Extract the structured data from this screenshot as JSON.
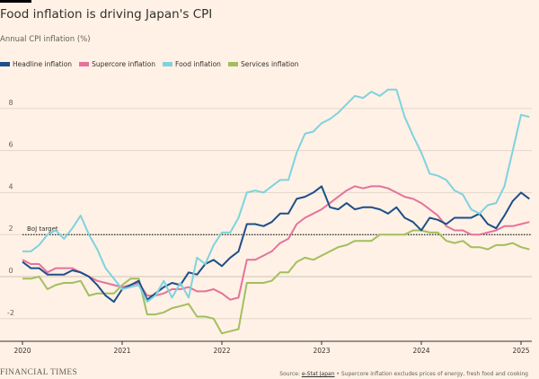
{
  "header": {
    "title": "Food inflation is driving Japan's CPI",
    "subtitle": "Annual CPI inflation (%)"
  },
  "footer": {
    "brand": "FINANCIAL TIMES",
    "source_prefix": "Source: ",
    "source_link": "e-Stat Japan",
    "source_note": " • Supercore inflation excludes prices of energy, fresh food and cooking"
  },
  "chart_data": {
    "type": "line",
    "title": "Food inflation is driving Japan's CPI",
    "ylabel": "Annual CPI inflation (%)",
    "xlabel": "",
    "x_start": "2020-01",
    "x_frequency": "monthly",
    "xticks": [
      "2020",
      "2021",
      "2022",
      "2023",
      "2024",
      "2025"
    ],
    "yticks": [
      -2,
      0,
      2,
      4,
      6,
      8
    ],
    "ylim": [
      -3,
      9.5
    ],
    "grid": true,
    "legend": "top-left",
    "reference_line": {
      "label": "BoJ target",
      "value": 2
    },
    "series": [
      {
        "name": "Headline inflation",
        "color": "#1d4f8a",
        "values": [
          0.7,
          0.4,
          0.4,
          0.1,
          0.1,
          0.1,
          0.3,
          0.2,
          0.0,
          -0.4,
          -0.9,
          -1.2,
          -0.6,
          -0.4,
          -0.2,
          -1.1,
          -0.8,
          -0.5,
          -0.3,
          -0.4,
          0.2,
          0.1,
          0.6,
          0.8,
          0.5,
          0.9,
          1.2,
          2.5,
          2.5,
          2.4,
          2.6,
          3.0,
          3.0,
          3.7,
          3.8,
          4.0,
          4.3,
          3.3,
          3.2,
          3.5,
          3.2,
          3.3,
          3.3,
          3.2,
          3.0,
          3.3,
          2.8,
          2.6,
          2.2,
          2.8,
          2.7,
          2.5,
          2.8,
          2.8,
          2.8,
          3.0,
          2.5,
          2.3,
          2.9,
          3.6,
          4.0,
          3.7
        ]
      },
      {
        "name": "Supercore inflation",
        "color": "#e4739c",
        "values": [
          0.8,
          0.6,
          0.6,
          0.2,
          0.4,
          0.4,
          0.4,
          0.2,
          0.0,
          -0.2,
          -0.3,
          -0.4,
          -0.5,
          -0.4,
          -0.3,
          -0.9,
          -0.9,
          -0.8,
          -0.6,
          -0.6,
          -0.5,
          -0.7,
          -0.7,
          -0.6,
          -0.8,
          -1.1,
          -1.0,
          0.8,
          0.8,
          1.0,
          1.2,
          1.6,
          1.8,
          2.5,
          2.8,
          3.0,
          3.2,
          3.5,
          3.8,
          4.1,
          4.3,
          4.2,
          4.3,
          4.3,
          4.2,
          4.0,
          3.8,
          3.7,
          3.5,
          3.2,
          2.9,
          2.4,
          2.2,
          2.2,
          2.0,
          2.0,
          2.1,
          2.2,
          2.4,
          2.4,
          2.5,
          2.6
        ]
      },
      {
        "name": "Food inflation",
        "color": "#7ed3df",
        "values": [
          1.2,
          1.2,
          1.5,
          2.0,
          2.2,
          1.8,
          2.3,
          2.9,
          2.0,
          1.3,
          0.4,
          -0.1,
          -0.6,
          -0.5,
          -0.4,
          -1.2,
          -0.9,
          -0.2,
          -1.0,
          -0.3,
          -1.0,
          0.9,
          0.6,
          1.5,
          2.1,
          2.1,
          2.8,
          4.0,
          4.1,
          4.0,
          4.3,
          4.6,
          4.6,
          5.9,
          6.8,
          6.9,
          7.3,
          7.5,
          7.8,
          8.2,
          8.6,
          8.5,
          8.8,
          8.6,
          8.9,
          8.9,
          7.6,
          6.7,
          5.9,
          4.9,
          4.8,
          4.6,
          4.1,
          3.9,
          3.2,
          3.0,
          3.4,
          3.5,
          4.3,
          6.0,
          7.7,
          7.6
        ]
      },
      {
        "name": "Services inflation",
        "color": "#a2bf5e",
        "values": [
          -0.1,
          -0.1,
          0.0,
          -0.6,
          -0.4,
          -0.3,
          -0.3,
          -0.2,
          -0.9,
          -0.8,
          -0.8,
          -0.8,
          -0.4,
          -0.1,
          -0.1,
          -1.8,
          -1.8,
          -1.7,
          -1.5,
          -1.4,
          -1.3,
          -1.9,
          -1.9,
          -2.0,
          -2.7,
          -2.6,
          -2.5,
          -0.3,
          -0.3,
          -0.3,
          -0.2,
          0.2,
          0.2,
          0.7,
          0.9,
          0.8,
          1.0,
          1.2,
          1.4,
          1.5,
          1.7,
          1.7,
          1.7,
          2.0,
          2.0,
          2.0,
          2.0,
          2.2,
          2.2,
          2.1,
          2.1,
          1.7,
          1.6,
          1.7,
          1.4,
          1.4,
          1.3,
          1.5,
          1.5,
          1.6,
          1.4,
          1.3
        ]
      }
    ]
  }
}
